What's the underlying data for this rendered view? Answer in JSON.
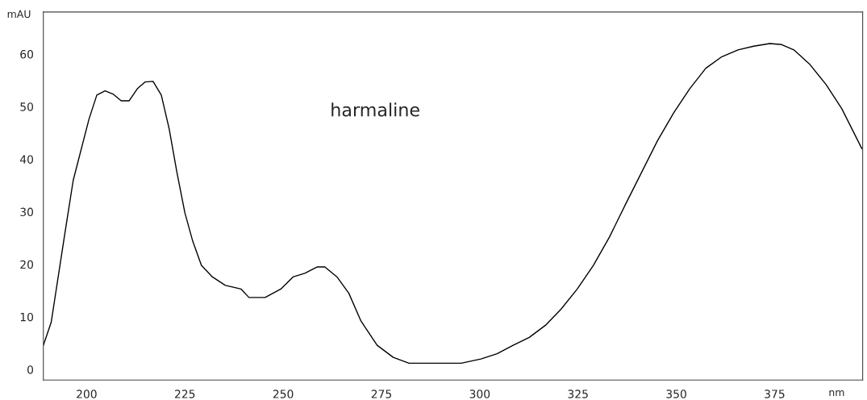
{
  "chart_data": {
    "type": "line",
    "xlabel": "nm",
    "ylabel": "mAU",
    "annotations": [
      "harmaline"
    ],
    "x": [
      189,
      191,
      194.5,
      196.6,
      200.6,
      202.6,
      204.7,
      206.7,
      208.8,
      210.8,
      212.9,
      214.9,
      216.9,
      219,
      221,
      223,
      225,
      227,
      229.2,
      232,
      235.3,
      239.3,
      241.3,
      245.4,
      249.4,
      252.5,
      255.5,
      258.6,
      260.6,
      263.7,
      266.7,
      269.8,
      273.9,
      278,
      282,
      286,
      290,
      295.3,
      300.3,
      304.4,
      308.5,
      312.6,
      316.7,
      320.7,
      324.8,
      328.9,
      333,
      337,
      341.1,
      345.2,
      349.4,
      353.4,
      357.5,
      361.6,
      365.7,
      369.7,
      373.8,
      376.8,
      379.9,
      384,
      388.1,
      392.1,
      397.2
    ],
    "series": [
      {
        "color": "#000000",
        "values": [
          4.6,
          9,
          26,
          36,
          47.6,
          52.2,
          53,
          52.4,
          51.1,
          51.1,
          53.4,
          54.7,
          54.8,
          52.2,
          45.8,
          37.4,
          29.8,
          24.4,
          19.8,
          17.6,
          16,
          15.3,
          13.7,
          13.7,
          15.3,
          17.6,
          18.3,
          19.5,
          19.5,
          17.6,
          14.5,
          9.2,
          4.6,
          2.3,
          1.2,
          1.2,
          1.2,
          1.2,
          2,
          3,
          4.6,
          6.1,
          8.4,
          11.5,
          15.3,
          19.8,
          25.2,
          31.3,
          37.4,
          43.5,
          48.9,
          53.4,
          57.3,
          59.5,
          60.8,
          61.5,
          62,
          61.8,
          60.8,
          58,
          54.2,
          49.6,
          42
        ]
      }
    ],
    "xlim": [
      189,
      397.4
    ],
    "ylim": [
      -2,
      68
    ],
    "xticks": [
      200,
      225,
      250,
      275,
      300,
      325,
      350,
      375
    ],
    "yticks": [
      0,
      10,
      20,
      30,
      40,
      50,
      60
    ],
    "grid": false,
    "legend": false,
    "marker": "none",
    "line_style": "solid"
  }
}
